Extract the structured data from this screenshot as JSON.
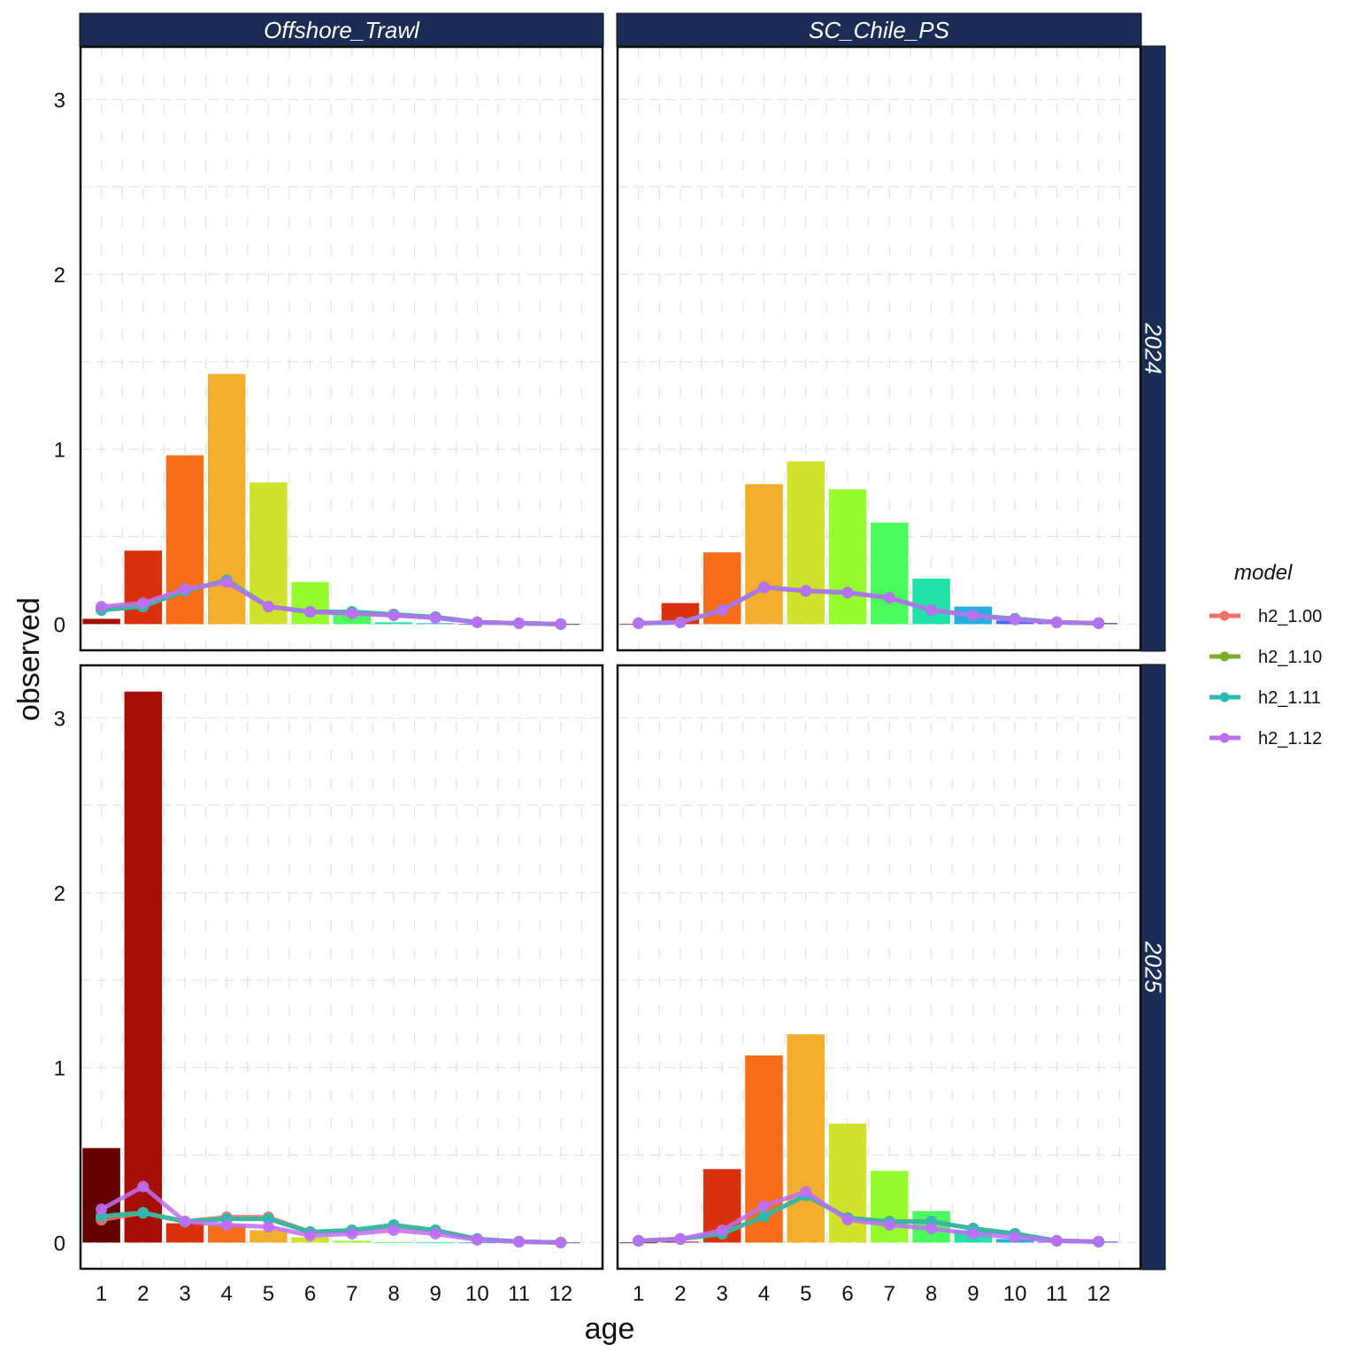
{
  "chart_data": {
    "type": "bar",
    "xlabel": "age",
    "ylabel": "observed",
    "ylim": [
      -0.15,
      3.3
    ],
    "yticks": [
      0,
      1,
      2,
      3
    ],
    "xticks": [
      1,
      2,
      3,
      4,
      5,
      6,
      7,
      8,
      9,
      10,
      11,
      12
    ],
    "xlim": [
      0.5,
      13.0
    ],
    "grid": true,
    "legend": {
      "title": "model",
      "placement": "right",
      "entries": [
        {
          "name": "h2_1.00",
          "color": "#F0716B"
        },
        {
          "name": "h2_1.10",
          "color": "#7BAD2A"
        },
        {
          "name": "h2_1.11",
          "color": "#2DB8B4"
        },
        {
          "name": "h2_1.12",
          "color": "#BE6EF5"
        }
      ]
    },
    "strip_color": "#1B2D54",
    "columns": [
      "Offshore_Trawl",
      "SC_Chile_PS"
    ],
    "rows": [
      "2024",
      "2025"
    ],
    "panels": [
      {
        "column": "Offshore_Trawl",
        "row": "2024",
        "bars": [
          0.03,
          0.42,
          0.965,
          1.43,
          0.81,
          0.24,
          0.07,
          0.01,
          0.005,
          0.0,
          0.0,
          0.0
        ],
        "bar_colors": [
          "#A50F08",
          "#D9310E",
          "#F66D1A",
          "#F3AE2D",
          "#CFE22C",
          "#95FB2F",
          "#4AFB5E",
          "#22E3A7",
          "#25AEE2",
          "#3C6DF4",
          "#4A3FB8",
          "#30123B"
        ],
        "series": [
          {
            "name": "h2_1.00",
            "values": [
              0.09,
              0.11,
              0.2,
              0.24,
              0.1,
              0.07,
              0.065,
              0.05,
              0.04,
              0.01,
              0.005,
              0.0
            ]
          },
          {
            "name": "h2_1.10",
            "values": [
              0.08,
              0.1,
              0.19,
              0.25,
              0.1,
              0.07,
              0.07,
              0.055,
              0.04,
              0.01,
              0.005,
              0.0
            ]
          },
          {
            "name": "h2_1.11",
            "values": [
              0.08,
              0.1,
              0.19,
              0.25,
              0.1,
              0.07,
              0.07,
              0.055,
              0.04,
              0.01,
              0.005,
              0.0
            ]
          },
          {
            "name": "h2_1.12",
            "values": [
              0.1,
              0.12,
              0.2,
              0.24,
              0.1,
              0.07,
              0.06,
              0.05,
              0.035,
              0.01,
              0.005,
              0.0
            ]
          }
        ]
      },
      {
        "column": "SC_Chile_PS",
        "row": "2024",
        "bars": [
          0.0,
          0.12,
          0.41,
          0.8,
          0.93,
          0.77,
          0.58,
          0.26,
          0.1,
          0.02,
          0.005,
          0.005
        ],
        "bar_colors": [
          "#A50F08",
          "#D9310E",
          "#F66D1A",
          "#F3AE2D",
          "#CFE22C",
          "#95FB2F",
          "#4AFB5E",
          "#22E3A7",
          "#25AEE2",
          "#3C6DF4",
          "#4A3FB8",
          "#30123B"
        ],
        "series": [
          {
            "name": "h2_1.00",
            "values": [
              0.005,
              0.01,
              0.08,
              0.21,
              0.19,
              0.18,
              0.15,
              0.08,
              0.05,
              0.03,
              0.01,
              0.005
            ]
          },
          {
            "name": "h2_1.10",
            "values": [
              0.005,
              0.01,
              0.08,
              0.21,
              0.19,
              0.18,
              0.15,
              0.08,
              0.05,
              0.03,
              0.01,
              0.005
            ]
          },
          {
            "name": "h2_1.11",
            "values": [
              0.005,
              0.01,
              0.08,
              0.21,
              0.19,
              0.18,
              0.15,
              0.08,
              0.05,
              0.03,
              0.01,
              0.005
            ]
          },
          {
            "name": "h2_1.12",
            "values": [
              0.005,
              0.01,
              0.08,
              0.21,
              0.19,
              0.18,
              0.15,
              0.08,
              0.05,
              0.025,
              0.01,
              0.005
            ]
          }
        ]
      },
      {
        "column": "Offshore_Trawl",
        "row": "2025",
        "bars": [
          0.54,
          3.15,
          0.11,
          0.1,
          0.07,
          0.03,
          0.01,
          0.002,
          0.0,
          0.0,
          0.0,
          0.0
        ],
        "bar_colors": [
          "#640000",
          "#A50F08",
          "#D9310E",
          "#F66D1A",
          "#F3AE2D",
          "#CFE22C",
          "#95FB2F",
          "#4AFB5E",
          "#22E3A7",
          "#25AEE2",
          "#3C6DF4",
          "#4A3FB8"
        ],
        "series": [
          {
            "name": "h2_1.00",
            "values": [
              0.13,
              0.17,
              0.12,
              0.145,
              0.145,
              0.06,
              0.07,
              0.095,
              0.07,
              0.02,
              0.005,
              0.0
            ]
          },
          {
            "name": "h2_1.10",
            "values": [
              0.15,
              0.17,
              0.12,
              0.135,
              0.135,
              0.06,
              0.07,
              0.1,
              0.07,
              0.02,
              0.005,
              0.0
            ]
          },
          {
            "name": "h2_1.11",
            "values": [
              0.15,
              0.17,
              0.12,
              0.135,
              0.135,
              0.06,
              0.07,
              0.1,
              0.07,
              0.02,
              0.005,
              0.0
            ]
          },
          {
            "name": "h2_1.12",
            "values": [
              0.19,
              0.32,
              0.12,
              0.1,
              0.09,
              0.04,
              0.05,
              0.07,
              0.05,
              0.015,
              0.005,
              0.0
            ]
          }
        ]
      },
      {
        "column": "SC_Chile_PS",
        "row": "2025",
        "bars": [
          0.0,
          0.005,
          0.42,
          1.07,
          1.19,
          0.68,
          0.41,
          0.18,
          0.07,
          0.02,
          0.005,
          0.005
        ],
        "bar_colors": [
          "#640000",
          "#A50F08",
          "#D9310E",
          "#F66D1A",
          "#F3AE2D",
          "#CFE22C",
          "#95FB2F",
          "#4AFB5E",
          "#22E3A7",
          "#25AEE2",
          "#3C6DF4",
          "#4A3FB8"
        ],
        "series": [
          {
            "name": "h2_1.00",
            "values": [
              0.01,
              0.02,
              0.05,
              0.15,
              0.27,
              0.14,
              0.12,
              0.12,
              0.08,
              0.05,
              0.01,
              0.005
            ]
          },
          {
            "name": "h2_1.10",
            "values": [
              0.01,
              0.02,
              0.05,
              0.15,
              0.27,
              0.14,
              0.12,
              0.12,
              0.08,
              0.05,
              0.01,
              0.005
            ]
          },
          {
            "name": "h2_1.11",
            "values": [
              0.01,
              0.02,
              0.05,
              0.15,
              0.27,
              0.14,
              0.12,
              0.12,
              0.08,
              0.05,
              0.01,
              0.005
            ]
          },
          {
            "name": "h2_1.12",
            "values": [
              0.01,
              0.02,
              0.07,
              0.21,
              0.29,
              0.13,
              0.1,
              0.08,
              0.05,
              0.03,
              0.01,
              0.005
            ]
          }
        ]
      }
    ]
  }
}
